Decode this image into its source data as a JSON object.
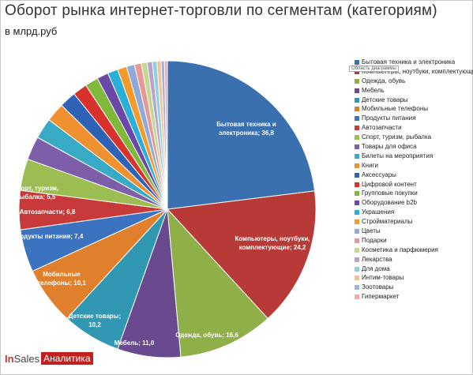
{
  "chart_data": {
    "type": "pie",
    "title": "Оборот рынка интернет-торговли по сегментам (категориям)",
    "subtitle": "в млрд.руб",
    "legend_position": "right",
    "tooltip": "Область диаграммы",
    "slices": [
      {
        "name": "Бытовая техника и электроника",
        "value": 36.8,
        "color": "#3a6fb0",
        "label_line1": "Бытовая техника и",
        "label_line2": "электроника; 36,8"
      },
      {
        "name": "Компьютеры, ноутбуки, комплектующие",
        "value": 24.2,
        "color": "#b73a36",
        "label_line1": "Компьютеры, ноутбуки,",
        "label_line2": "комплектующие; 24,2"
      },
      {
        "name": "Одежда, обувь",
        "value": 16.6,
        "color": "#8fb048",
        "label_line1": "Одежда, обувь; 16,6",
        "label_line2": ""
      },
      {
        "name": "Мебель",
        "value": 11.0,
        "color": "#6a4a8f",
        "label_line1": "Мебель; 11,0",
        "label_line2": ""
      },
      {
        "name": "Детские товары",
        "value": 10.2,
        "color": "#3198b4",
        "label_line1": "Детские товары;",
        "label_line2": "10,2"
      },
      {
        "name": "Мобильные телефоны",
        "value": 10.1,
        "color": "#e07f2c",
        "label_line1": "Мобильные",
        "label_line2": "телефоны; 10,1"
      },
      {
        "name": "Продукты питания",
        "value": 7.4,
        "color": "#3b73c0",
        "label_line1": "Продукты питания; 7,4",
        "label_line2": ""
      },
      {
        "name": "Автозапчасти",
        "value": 6.8,
        "color": "#c83a3a",
        "label_line1": "Автозапчасти; 6,8",
        "label_line2": ""
      },
      {
        "name": "Спорт, туризм, рыбалка",
        "value": 5.5,
        "color": "#9cbd52",
        "label_line1": "Спорт, туризм,",
        "label_line2": "рыбалка; 5,5"
      },
      {
        "name": "Товары для офиса",
        "value": 4.1,
        "color": "#7d5ea8",
        "label_line1": "",
        "label_line2": ""
      },
      {
        "name": "Билеты на мероприятия",
        "value": 3.6,
        "color": "#39aac6",
        "label_line1": "",
        "label_line2": ""
      },
      {
        "name": "Книги",
        "value": 3.3,
        "color": "#f0912f",
        "label_line1": "",
        "label_line2": ""
      },
      {
        "name": "Аксессуары",
        "value": 2.9,
        "color": "#2e62b4",
        "label_line1": "",
        "label_line2": ""
      },
      {
        "name": "Цифровой контент",
        "value": 2.5,
        "color": "#d9312b",
        "label_line1": "",
        "label_line2": ""
      },
      {
        "name": "Групповые покупки",
        "value": 2.3,
        "color": "#7fb83a",
        "label_line1": "",
        "label_line2": ""
      },
      {
        "name": "Оборудование b2b",
        "value": 2.0,
        "color": "#6b47a8",
        "label_line1": "",
        "label_line2": ""
      },
      {
        "name": "Украшения",
        "value": 1.8,
        "color": "#2ab0d8",
        "label_line1": "",
        "label_line2": ""
      },
      {
        "name": "Стройматериалы",
        "value": 1.6,
        "color": "#f59a2c",
        "label_line1": "",
        "label_line2": ""
      },
      {
        "name": "Цветы",
        "value": 1.4,
        "color": "#8fa9d8",
        "label_line1": "",
        "label_line2": ""
      },
      {
        "name": "Подарки",
        "value": 1.2,
        "color": "#e59a98",
        "label_line1": "",
        "label_line2": ""
      },
      {
        "name": "Косметика и парфюмерия",
        "value": 1.0,
        "color": "#c4d88f",
        "label_line1": "",
        "label_line2": ""
      },
      {
        "name": "Лекарства",
        "value": 0.9,
        "color": "#b6a3d0",
        "label_line1": "",
        "label_line2": ""
      },
      {
        "name": "Для дома",
        "value": 0.8,
        "color": "#90d0e2",
        "label_line1": "",
        "label_line2": ""
      },
      {
        "name": "Интим-товары",
        "value": 0.7,
        "color": "#f8c08a",
        "label_line1": "",
        "label_line2": ""
      },
      {
        "name": "Зоотовары",
        "value": 0.6,
        "color": "#9fb4e0",
        "label_line1": "",
        "label_line2": ""
      },
      {
        "name": "Гипермаркет",
        "value": 0.5,
        "color": "#f2a8a8",
        "label_line1": "",
        "label_line2": ""
      }
    ]
  },
  "brand": {
    "part1": "In",
    "part2": "Sales",
    "tag": "Аналитика"
  }
}
